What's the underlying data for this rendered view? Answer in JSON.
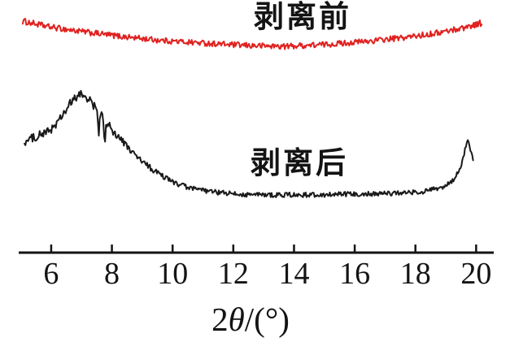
{
  "figure": {
    "background_color": "#ffffff",
    "axis_color": "#141414",
    "text_color": "#141414"
  },
  "chart_data": {
    "type": "line",
    "title": "",
    "xlabel": "2θ/(°)",
    "ylabel": "",
    "legend_position": "inline-labels",
    "grid": false,
    "x_axis": {
      "range": [
        4.93,
        20.58
      ],
      "ticks": [
        6,
        8,
        10,
        12,
        14,
        16,
        18,
        20
      ],
      "tick_labels": [
        "6",
        "8",
        "10",
        "12",
        "14",
        "16",
        "18",
        "20"
      ],
      "label_parts": {
        "prefix": "2",
        "theta": "θ",
        "suffix": "/(°)"
      }
    },
    "y_axis": {
      "visible": false,
      "units": "intensity (a.u.)",
      "range": [
        0,
        100
      ]
    },
    "series": [
      {
        "name": "剥离前",
        "color": "#e02220",
        "description": "noisy shallow dish-shaped curve, high intensity",
        "anchors": [
          [
            5.06,
            96.0,
            1.4
          ],
          [
            5.9,
            93.5,
            1.3
          ],
          [
            7.0,
            91.3,
            1.3
          ],
          [
            8.33,
            89.1,
            1.3
          ],
          [
            9.67,
            87.3,
            1.3
          ],
          [
            11.0,
            86.2,
            1.3
          ],
          [
            12.35,
            85.1,
            1.3
          ],
          [
            13.7,
            84.7,
            1.3
          ],
          [
            15.0,
            85.5,
            1.3
          ],
          [
            16.37,
            86.9,
            1.3
          ],
          [
            17.7,
            88.7,
            1.3
          ],
          [
            18.8,
            90.9,
            1.3
          ],
          [
            19.6,
            93.1,
            1.3
          ],
          [
            20.18,
            95.3,
            1.5
          ]
        ]
      },
      {
        "name": "剥离后",
        "color": "#1a1a1a",
        "description": "broad peak near 2θ=7, flat noisy baseline, sharp rise near 2θ=19.7",
        "anchors": [
          [
            5.12,
            41.8,
            1.9
          ],
          [
            5.5,
            44.4,
            1.9
          ],
          [
            5.9,
            46.5,
            1.9
          ],
          [
            6.2,
            50.2,
            1.9
          ],
          [
            6.45,
            55.3,
            2.0
          ],
          [
            6.67,
            59.6,
            2.2
          ],
          [
            6.86,
            62.2,
            2.2
          ],
          [
            7.0,
            63.3,
            2.2
          ],
          [
            7.18,
            61.8,
            2.2
          ],
          [
            7.34,
            59.3,
            2.0
          ],
          [
            7.52,
            55.9,
            2.0
          ],
          [
            7.56,
            43.0,
            0.5
          ],
          [
            7.61,
            54.5,
            2.0
          ],
          [
            7.72,
            52.3,
            2.0
          ],
          [
            7.76,
            38.5,
            0.5
          ],
          [
            7.81,
            50.9,
            2.0
          ],
          [
            8.0,
            47.3,
            1.8
          ],
          [
            8.33,
            42.5,
            1.6
          ],
          [
            8.73,
            36.4,
            1.5
          ],
          [
            9.13,
            31.6,
            1.5
          ],
          [
            9.54,
            27.6,
            1.3
          ],
          [
            10.07,
            23.6,
            1.1
          ],
          [
            10.6,
            21.1,
            1.1
          ],
          [
            11.28,
            19.6,
            1.1
          ],
          [
            12.1,
            18.5,
            1.1
          ],
          [
            13.15,
            18.2,
            1.1
          ],
          [
            14.5,
            18.2,
            1.1
          ],
          [
            15.8,
            18.5,
            1.1
          ],
          [
            17.2,
            18.9,
            1.1
          ],
          [
            18.25,
            19.6,
            1.1
          ],
          [
            18.9,
            21.5,
            1.1
          ],
          [
            19.26,
            24.7,
            1.1
          ],
          [
            19.47,
            29.8,
            1.0
          ],
          [
            19.6,
            36.4,
            0.9
          ],
          [
            19.69,
            41.8,
            0.8
          ],
          [
            19.74,
            42.9,
            0.8
          ],
          [
            19.82,
            37.8,
            0.8
          ],
          [
            19.9,
            34.2,
            0.8
          ]
        ]
      }
    ]
  }
}
